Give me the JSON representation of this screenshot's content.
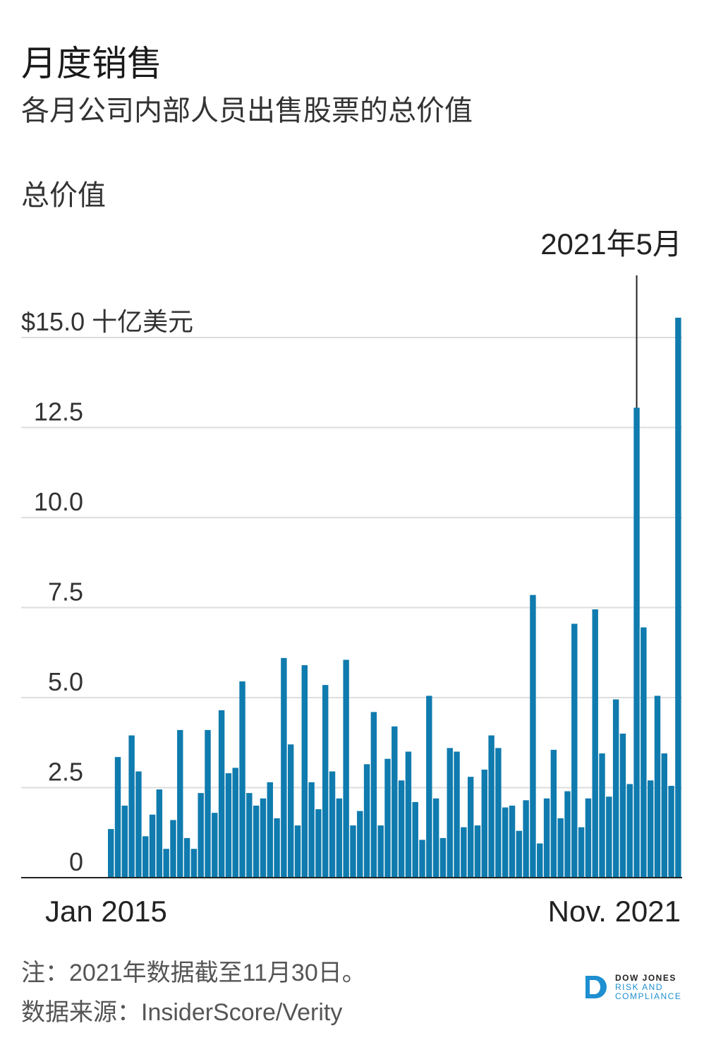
{
  "header": {
    "title": "月度销售",
    "subtitle": "各月公司内部人员出售股票的总价值",
    "ylabel": "总价值"
  },
  "chart_data": {
    "type": "bar",
    "title": "月度销售",
    "subtitle": "各月公司内部人员出售股票的总价值",
    "ylabel": "总价值",
    "yunit": "十亿美元",
    "ylim": [
      0,
      15
    ],
    "yticks": [
      0,
      2.5,
      5,
      7.5,
      10,
      12.5,
      15
    ],
    "ytick_labels": [
      "0",
      "2.5",
      "5.0",
      "7.5",
      "10.0",
      "12.5",
      "$15.0"
    ],
    "x_start_label": "Jan 2015",
    "x_end_label": "Nov. 2021",
    "annotation": {
      "label": "2021年5月",
      "index": 76
    },
    "color": "#0f7bae",
    "grid": true,
    "values": [
      1.35,
      3.35,
      2.0,
      3.95,
      2.95,
      1.15,
      1.75,
      2.45,
      0.8,
      1.6,
      4.1,
      1.1,
      0.8,
      2.35,
      4.1,
      1.8,
      4.65,
      2.9,
      3.05,
      5.45,
      2.35,
      2.0,
      2.2,
      2.65,
      1.65,
      6.1,
      3.7,
      1.45,
      5.9,
      2.65,
      1.9,
      5.35,
      2.95,
      2.2,
      6.05,
      1.45,
      1.85,
      3.15,
      4.6,
      1.45,
      3.3,
      4.2,
      2.7,
      3.5,
      2.1,
      1.05,
      5.05,
      2.2,
      1.1,
      3.6,
      3.5,
      1.4,
      2.8,
      1.45,
      3.0,
      3.95,
      3.6,
      1.95,
      2.0,
      1.3,
      2.15,
      7.85,
      0.95,
      2.2,
      3.55,
      1.65,
      2.4,
      7.05,
      1.4,
      2.2,
      7.45,
      3.45,
      2.25,
      4.95,
      4.0,
      2.6,
      13.05,
      6.95,
      2.7,
      5.05,
      3.45,
      2.55,
      15.55
    ]
  },
  "footer": {
    "note": "注：2021年数据截至11月30日。",
    "source": "数据来源：InsiderScore/Verity"
  },
  "logo": {
    "line1": "DOW JONES",
    "line2": "RISK AND",
    "line3": "COMPLIANCE"
  }
}
